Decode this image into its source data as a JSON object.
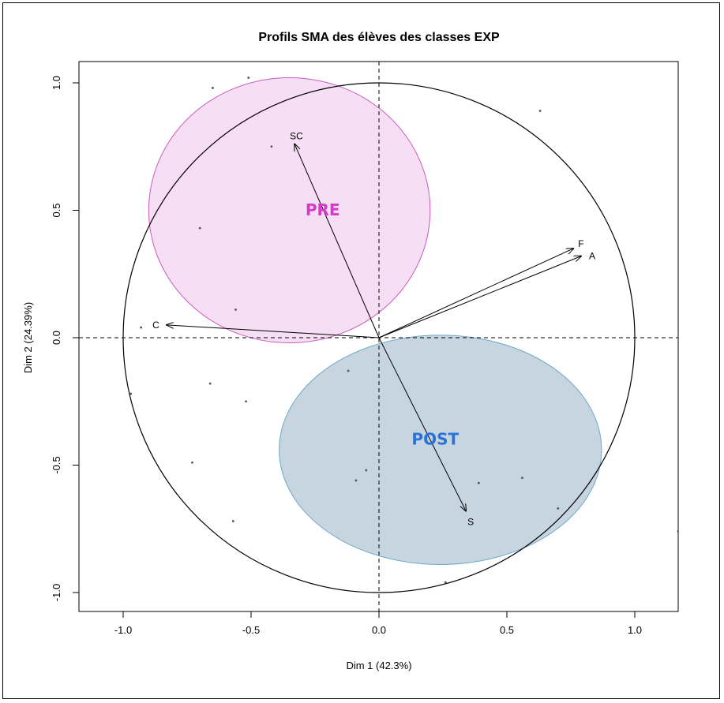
{
  "chart_data": {
    "type": "scatter",
    "title": "Profils SMA des élèves des classes EXP",
    "xlabel": "Dim 1 (42.3%)",
    "ylabel": "Dim 2 (24.39%)",
    "xlim": [
      -1.17,
      1.17
    ],
    "ylim": [
      -1.07,
      1.07
    ],
    "x_ticks": [
      -1.0,
      -0.5,
      0.0,
      0.5,
      1.0
    ],
    "x_tick_labels": [
      "-1.0",
      "-0.5",
      "0.0",
      "0.5",
      "1.0"
    ],
    "y_ticks": [
      -1.0,
      -0.5,
      0.0,
      0.5,
      1.0
    ],
    "y_tick_labels": [
      "-1.0",
      "-0.5",
      "0.0",
      "0.5",
      "1.0"
    ],
    "unit_circle": true,
    "zero_lines": "dashed",
    "variables": [
      {
        "name": "SC",
        "x": -0.33,
        "y": 0.76
      },
      {
        "name": "F",
        "x": 0.76,
        "y": 0.35
      },
      {
        "name": "A",
        "x": 0.79,
        "y": 0.32
      },
      {
        "name": "C",
        "x": -0.83,
        "y": 0.05
      },
      {
        "name": "S",
        "x": 0.34,
        "y": -0.68
      }
    ],
    "individuals": [
      {
        "x": -0.65,
        "y": 0.98
      },
      {
        "x": -0.51,
        "y": 1.02
      },
      {
        "x": 0.63,
        "y": 0.89
      },
      {
        "x": -0.42,
        "y": 0.75
      },
      {
        "x": -0.7,
        "y": 0.43
      },
      {
        "x": -0.56,
        "y": 0.11
      },
      {
        "x": -0.93,
        "y": 0.04
      },
      {
        "x": -0.97,
        "y": -0.22
      },
      {
        "x": -0.66,
        "y": -0.18
      },
      {
        "x": -0.52,
        "y": -0.25
      },
      {
        "x": -0.73,
        "y": -0.49
      },
      {
        "x": -0.57,
        "y": -0.72
      },
      {
        "x": -0.12,
        "y": -0.13
      },
      {
        "x": -0.05,
        "y": -0.52
      },
      {
        "x": -0.09,
        "y": -0.56
      },
      {
        "x": 0.39,
        "y": -0.57
      },
      {
        "x": 0.56,
        "y": -0.55
      },
      {
        "x": 0.7,
        "y": -0.67
      },
      {
        "x": 0.26,
        "y": -0.96
      },
      {
        "x": 1.17,
        "y": -0.76
      }
    ],
    "groups": [
      {
        "label": "PRE",
        "label_x": -0.22,
        "label_y": 0.48,
        "center_x": -0.35,
        "center_y": 0.5,
        "rx": 0.55,
        "ry": 0.52,
        "fill": "#f5dcf3",
        "stroke": "#c95bbd",
        "label_color": "#d63ac8"
      },
      {
        "label": "POST",
        "label_x": 0.22,
        "label_y": -0.42,
        "center_x": 0.24,
        "center_y": -0.44,
        "rx": 0.63,
        "ry": 0.45,
        "fill": "#c3d3de",
        "stroke": "#6ea9c9",
        "label_color": "#2b72d9"
      }
    ]
  }
}
